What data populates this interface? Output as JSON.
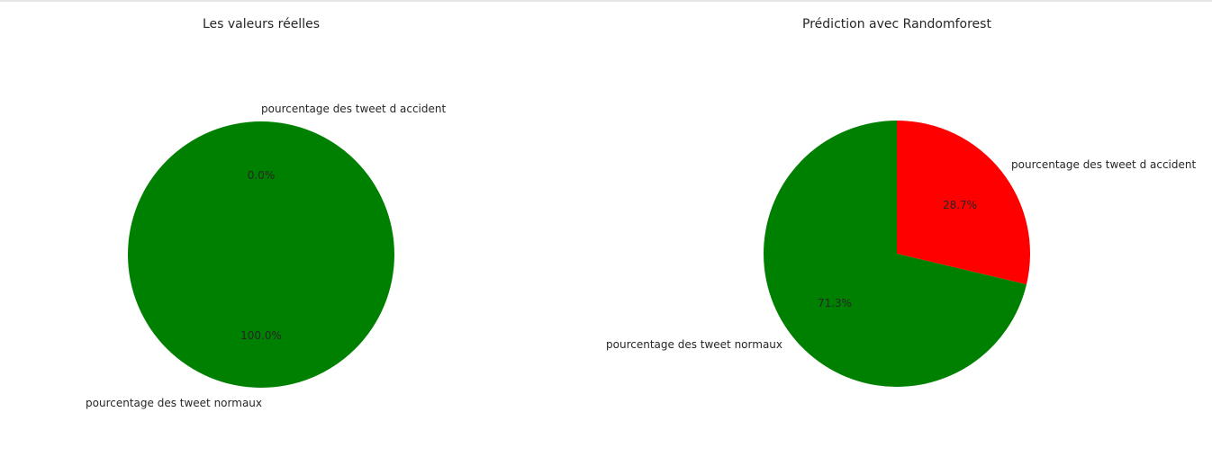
{
  "chart_data": [
    {
      "type": "pie",
      "title": "Les valeurs réelles",
      "labels": [
        "pourcentage des tweet d accident",
        "pourcentage des tweet normaux"
      ],
      "values": [
        0.0,
        100.0
      ],
      "autopct": [
        "0.0%",
        "100.0%"
      ],
      "colors": [
        "#ff0000",
        "#008000"
      ],
      "startangle": 90
    },
    {
      "type": "pie",
      "title": "Prédiction avec Randomforest",
      "labels": [
        "pourcentage des tweet d accident",
        "pourcentage des tweet normaux"
      ],
      "values": [
        28.7,
        71.3
      ],
      "autopct": [
        "28.7%",
        "71.3%"
      ],
      "colors": [
        "#ff0000",
        "#008000"
      ],
      "startangle": 90
    }
  ]
}
